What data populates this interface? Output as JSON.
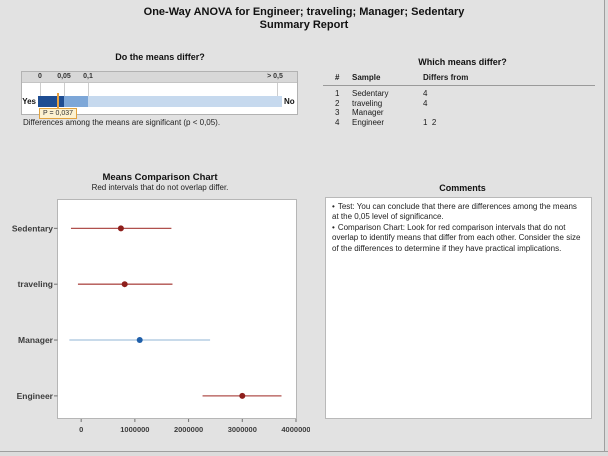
{
  "title": {
    "line1": "One-Way ANOVA for Engineer; traveling; Manager; Sedentary",
    "line2": "Summary Report"
  },
  "gauge": {
    "title": "Do the means differ?",
    "scale_labels": [
      "0",
      "0,05",
      "0,1",
      "> 0,5"
    ],
    "scale_values": [
      0,
      0.05,
      0.1,
      0.5
    ],
    "yes_label": "Yes",
    "no_label": "No",
    "p_value": 0.037,
    "p_label": "P = 0,037",
    "caption": "Differences among the means are significant (p < 0,05).",
    "colors": {
      "dark_segment": "#1e4d92",
      "medium_segment": "#7da7d8",
      "light_segment": "#c6d9ee",
      "marker": "#e9a13e",
      "p_label_bg": "#fdf2d0",
      "p_label_border": "#e2a33e"
    }
  },
  "differs_table": {
    "title": "Which means differ?",
    "columns": [
      "#",
      "Sample",
      "Differs from"
    ],
    "rows": [
      {
        "num": "1",
        "sample": "Sedentary",
        "differs": "4"
      },
      {
        "num": "2",
        "sample": "traveling",
        "differs": "4"
      },
      {
        "num": "3",
        "sample": "Manager",
        "differs": ""
      },
      {
        "num": "4",
        "sample": "Engineer",
        "differs": "1  2"
      }
    ]
  },
  "chart_data": {
    "type": "interval",
    "title": "Means Comparison Chart",
    "subtitle": "Red intervals that do not overlap differ.",
    "xlabel": "",
    "ylabel": "",
    "categories": [
      "Sedentary",
      "traveling",
      "Manager",
      "Engineer"
    ],
    "series": [
      {
        "name": "Sedentary",
        "mean": 740000,
        "low": -190000,
        "high": 1680000,
        "color_group": "red"
      },
      {
        "name": "traveling",
        "mean": 810000,
        "low": -60000,
        "high": 1700000,
        "color_group": "red"
      },
      {
        "name": "Manager",
        "mean": 1090000,
        "low": -220000,
        "high": 2400000,
        "color_group": "blue"
      },
      {
        "name": "Engineer",
        "mean": 3000000,
        "low": 2260000,
        "high": 3730000,
        "color_group": "red"
      }
    ],
    "xlim": [
      -450000,
      4000000
    ],
    "x_ticks": [
      0,
      1000000,
      2000000,
      3000000,
      4000000
    ],
    "x_tick_labels": [
      "0",
      "1000000",
      "2000000",
      "3000000",
      "4000000"
    ],
    "grid": false,
    "legend": "none",
    "colors": {
      "red_line": "#b0504d",
      "red_dot": "#8e1f1c",
      "blue_line": "#a8c4de",
      "blue_dot": "#1f5fa9",
      "plot_border": "#b6b6b6",
      "axis_text": "#3c3c3c"
    }
  },
  "comments": {
    "title": "Comments",
    "bullet_char": "•",
    "bullets": [
      "Test: You can conclude that there are differences among the means at the 0,05 level of significance.",
      "Comparison Chart: Look for red comparison intervals that do not overlap to identify means that differ from each other. Consider the size of the differences to determine if they have practical implications."
    ]
  }
}
